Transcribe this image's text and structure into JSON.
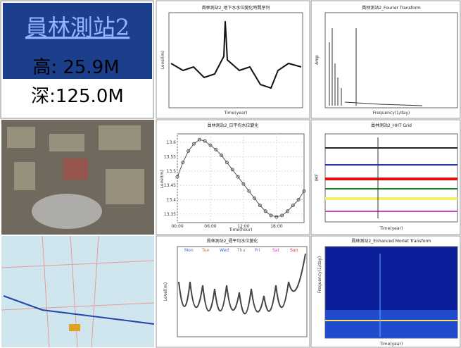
{
  "header": {
    "station": "員林測站2",
    "height": "高: 25.9M",
    "depth": "深:125.0M"
  },
  "panels": {
    "series": {
      "title": "員林測站2_地下水水位變化時間序列",
      "xlabel": "Time(year)",
      "ylabel": "Level(m)"
    },
    "fourier": {
      "title": "員林測站2_Fourier Transform",
      "xlabel": "Frequency(1/day)",
      "ylabel": "Amp"
    },
    "hht": {
      "title": "員林測站2_HHT Grid",
      "xlabel": "Time(year)",
      "ylabel": "IMF"
    },
    "weekly": {
      "title": "員林測站2_週平均水位變化",
      "ylabel": "Level(m)",
      "days": [
        "Mon",
        "Tue",
        "Wed",
        "Thu",
        "Fri",
        "Sat",
        "Sun"
      ]
    },
    "morlet": {
      "title": "員林測站2_Enhanced Morlet Transform",
      "ylabel": "Frequency(1/day)",
      "xlabel": "Time(year)"
    }
  },
  "chart_data": {
    "type": "line",
    "title": "員林測站2_日平均水位變化",
    "xlabel": "Time(hour)",
    "ylabel": "Level(m)",
    "color": "#555555",
    "x": [
      0,
      1,
      2,
      3,
      4,
      5,
      6,
      7,
      8,
      9,
      10,
      11,
      12,
      13,
      14,
      15,
      16,
      17,
      18,
      19,
      20,
      21,
      22,
      23
    ],
    "values": [
      13.48,
      13.53,
      13.57,
      13.595,
      13.61,
      13.605,
      13.59,
      13.575,
      13.555,
      13.53,
      13.505,
      13.48,
      13.455,
      13.43,
      13.405,
      13.38,
      13.36,
      13.345,
      13.34,
      13.345,
      13.36,
      13.38,
      13.4,
      13.43
    ],
    "xlim": [
      0,
      23
    ],
    "ylim": [
      13.32,
      13.63
    ],
    "xticks": [
      {
        "value": 0,
        "label": "00:00"
      },
      {
        "value": 6,
        "label": "06:00"
      },
      {
        "value": 12,
        "label": "12:00"
      },
      {
        "value": 18,
        "label": "18:00"
      }
    ],
    "yticks": [
      13.35,
      13.4,
      13.45,
      13.5,
      13.55,
      13.6
    ],
    "grid": true
  }
}
